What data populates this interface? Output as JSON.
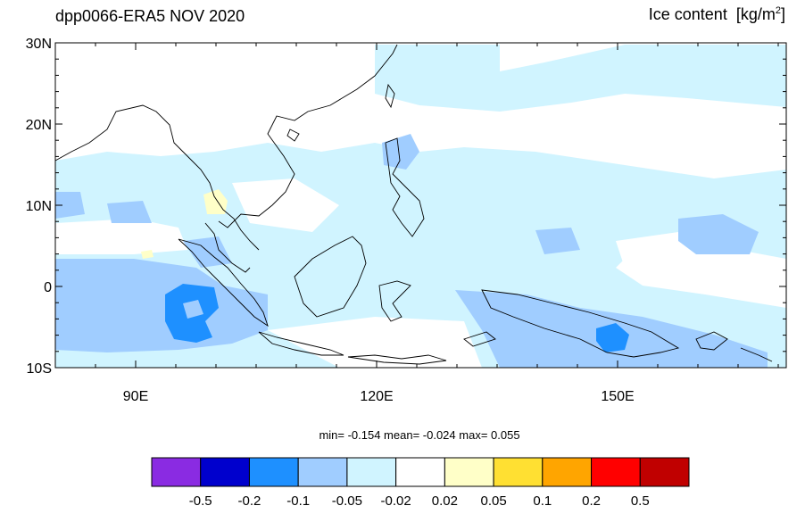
{
  "title": "dpp0066-ERA5 NOV 2020",
  "variable": {
    "name": "Ice content",
    "unit_base": "[kg/m",
    "unit_sup": "2",
    "unit_end": "]"
  },
  "stats": {
    "text": "min=  -0.154  mean=  -0.024  max=   0.055"
  },
  "axes": {
    "lat_labels": [
      "30N",
      "20N",
      "10N",
      "0",
      "10S"
    ],
    "lon_labels": [
      "90E",
      "120E",
      "150E"
    ]
  },
  "colorbar": {
    "colors": [
      "#8a2be2",
      "#0000cd",
      "#1e90ff",
      "#a0cdff",
      "#d0f4ff",
      "#ffffff",
      "#ffffc8",
      "#ffe032",
      "#ffa500",
      "#ff0000",
      "#c00000"
    ],
    "labels": [
      "-0.5",
      "-0.2",
      "-0.1",
      "-0.05",
      "-0.02",
      "0.02",
      "0.05",
      "0.1",
      "0.2",
      "0.5"
    ]
  }
}
